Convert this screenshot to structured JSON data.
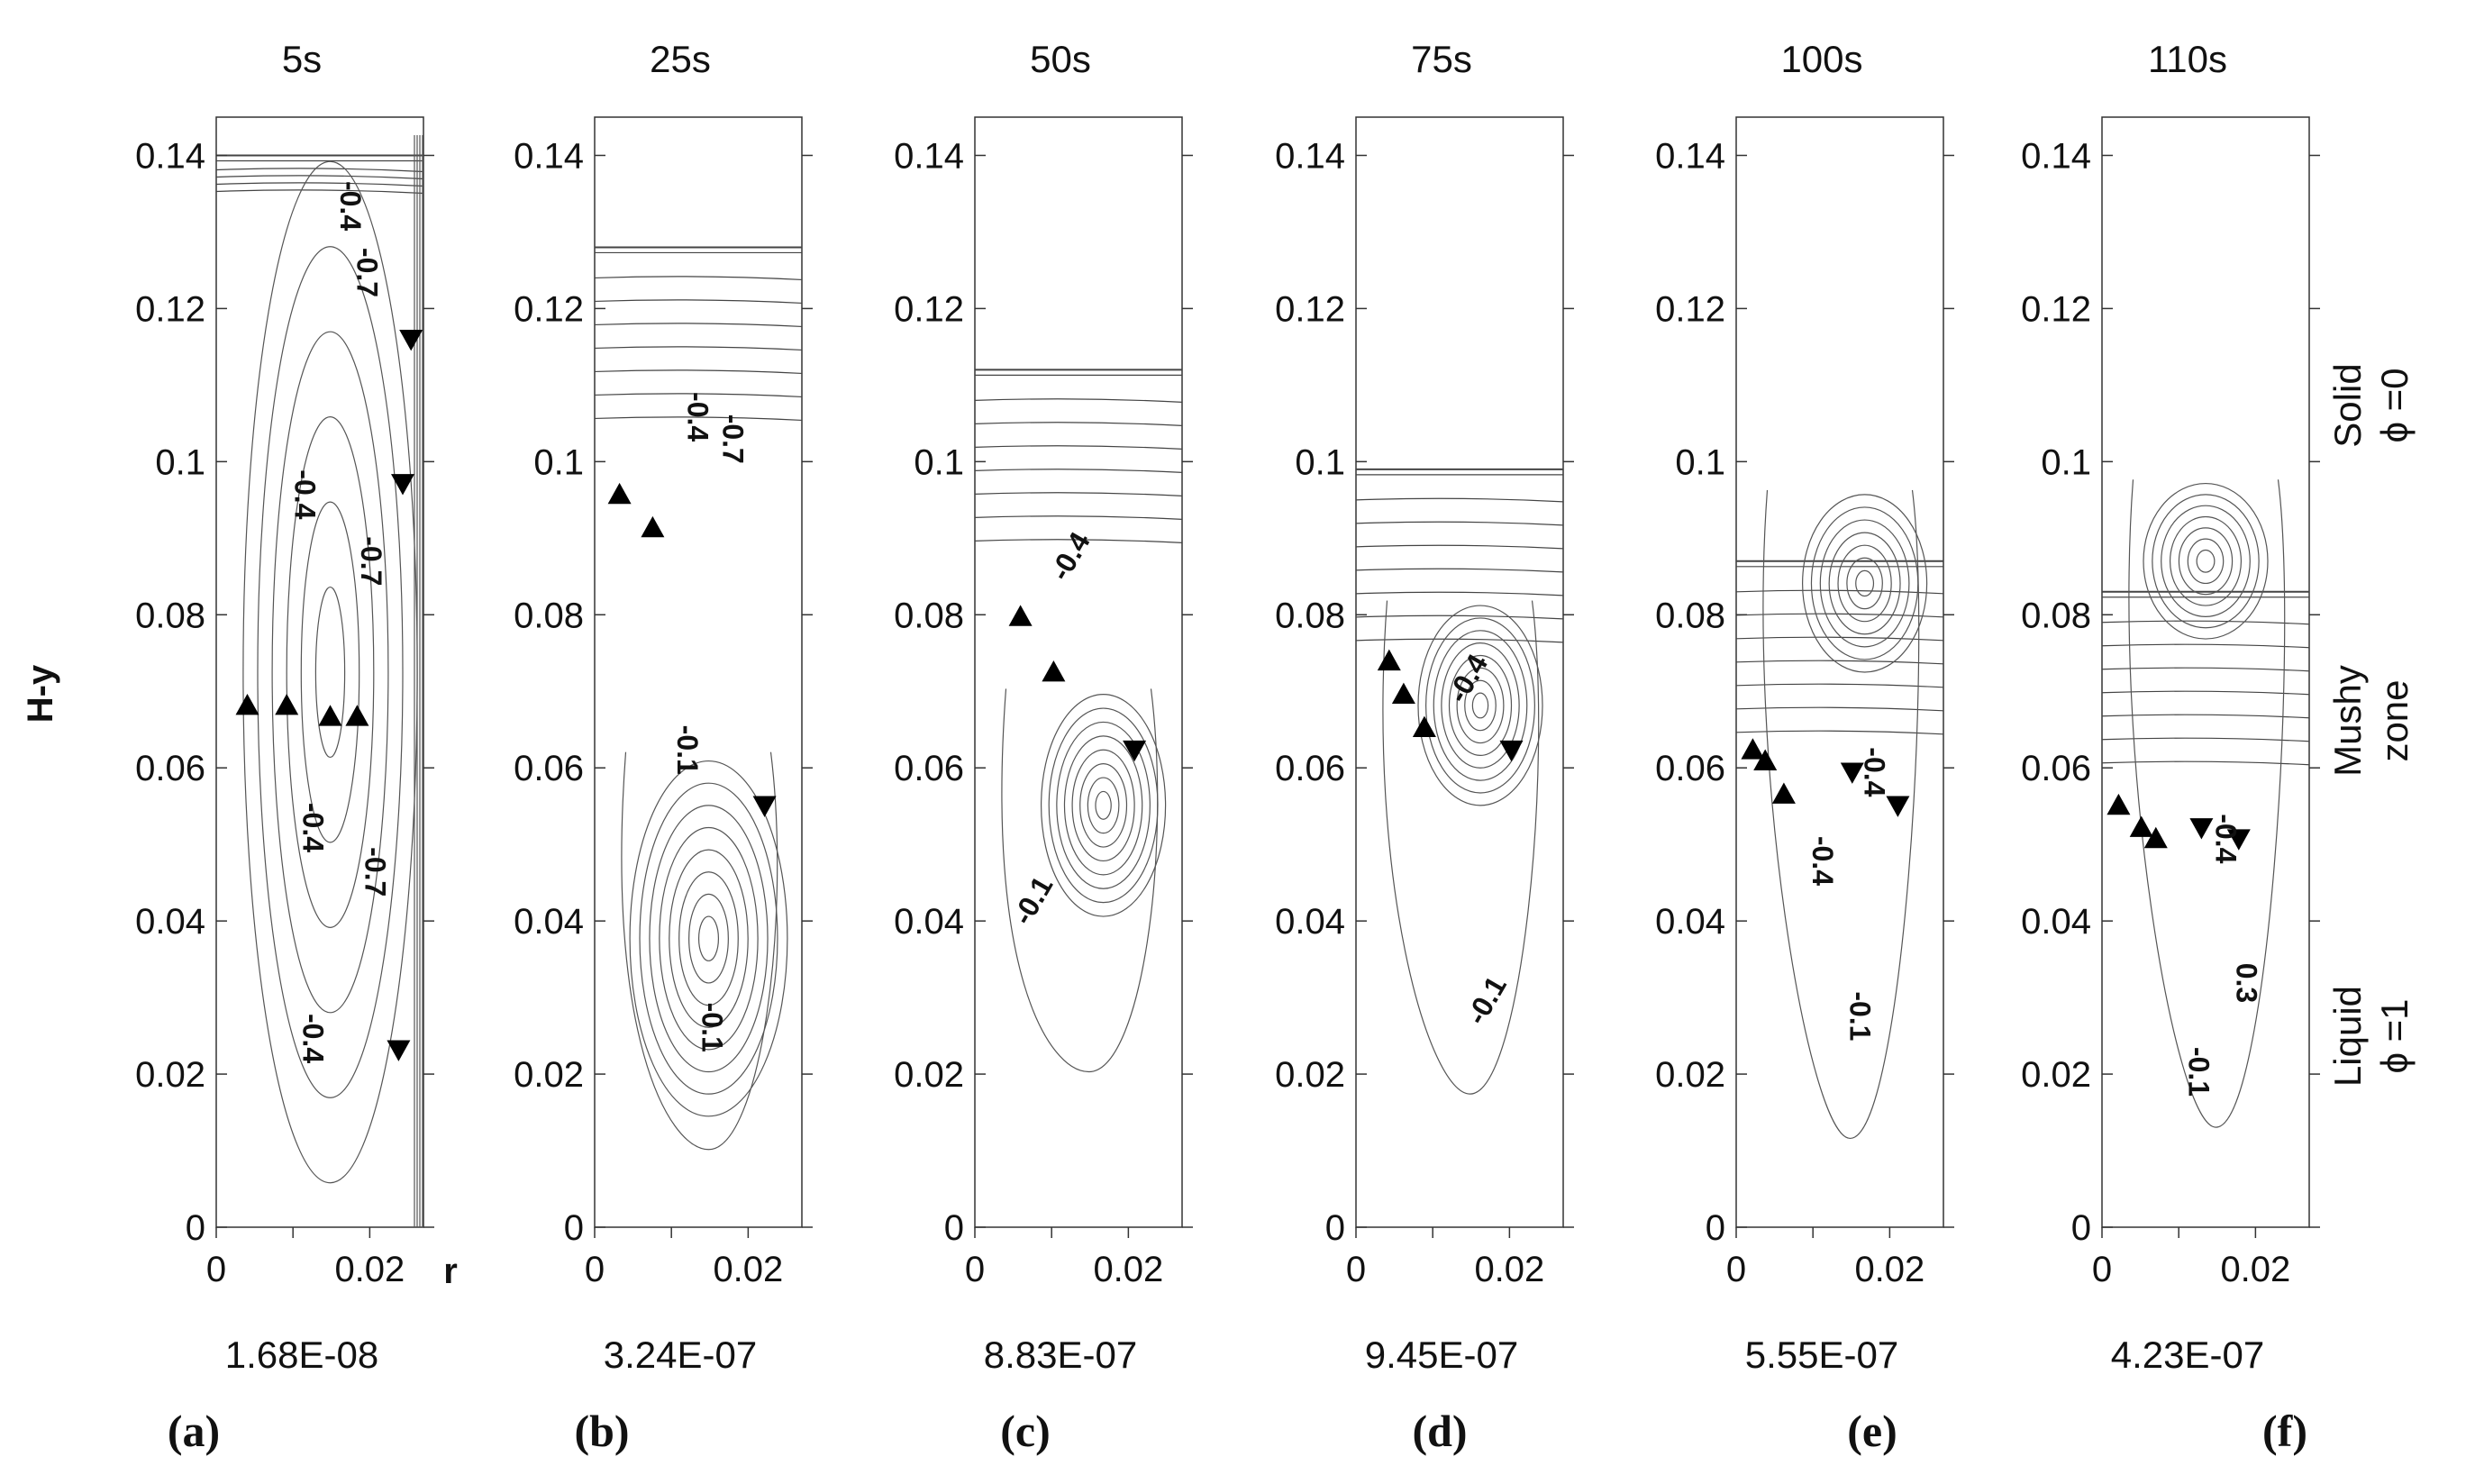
{
  "chart_data": {
    "type": "contour",
    "ylabel": "H-y",
    "xlabel": "r",
    "xlim": [
      0,
      0.027
    ],
    "ylim": [
      0,
      0.145
    ],
    "yticks": [
      "0",
      "0.02",
      "0.04",
      "0.06",
      "0.08",
      "0.1",
      "0.12",
      "0.14"
    ],
    "xticks": [
      "0",
      "0.02"
    ],
    "regions": [
      {
        "line1": "Solid",
        "line2": "ϕ =0"
      },
      {
        "line1": "Mushy",
        "line2": "zone"
      },
      {
        "line1": "Liquid",
        "line2": "ϕ =1"
      }
    ],
    "panels": [
      {
        "label": "(a)",
        "time": "5s",
        "max_value": "1.68E-08",
        "solid_front": 0.14,
        "contour_labels": [
          "-0.4",
          "-0.7",
          "-0.4",
          "-0.7",
          "-0.4",
          "-0.7",
          "-0.4"
        ]
      },
      {
        "label": "(b)",
        "time": "25s",
        "max_value": "3.24E-07",
        "solid_front": 0.128,
        "contour_labels": [
          "-0.4",
          "-0.7",
          "-0.1",
          "-0.1"
        ]
      },
      {
        "label": "(c)",
        "time": "50s",
        "max_value": "8.83E-07",
        "solid_front": 0.112,
        "contour_labels": [
          "-0.4",
          "-0.1"
        ]
      },
      {
        "label": "(d)",
        "time": "75s",
        "max_value": "9.45E-07",
        "solid_front": 0.099,
        "contour_labels": [
          "-0.4",
          "-0.1"
        ]
      },
      {
        "label": "(e)",
        "time": "100s",
        "max_value": "5.55E-07",
        "solid_front": 0.087,
        "contour_labels": [
          "-0.4",
          "-0.4",
          "-0.1"
        ]
      },
      {
        "label": "(f)",
        "time": "110s",
        "max_value": "4.23E-07",
        "solid_front": 0.083,
        "contour_labels": [
          "-0.4",
          "-0.1",
          "0.3"
        ]
      }
    ]
  }
}
